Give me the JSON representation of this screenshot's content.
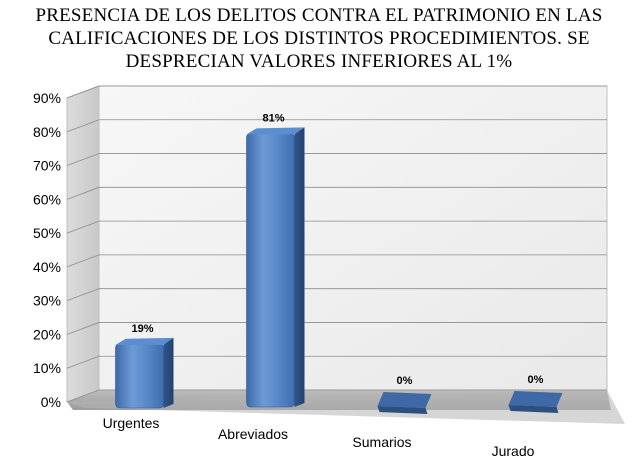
{
  "chart_data": {
    "type": "bar",
    "title": "PRESENCIA DE LOS DELITOS CONTRA EL PATRIMONIO EN LAS CALIFICACIONES DE LOS DISTINTOS PROCEDIMIENTOS. SE DESPRECIAN VALORES INFERIORES AL 1%",
    "title_lines": [
      "PRESENCIA DE LOS DELITOS CONTRA EL PATRIMONIO EN LAS",
      "CALIFICACIONES DE LOS DISTINTOS PROCEDIMIENTOS. SE",
      "DESPRECIAN VALORES INFERIORES AL 1%"
    ],
    "categories": [
      "Urgentes",
      "Abreviados",
      "Sumarios",
      "Jurado"
    ],
    "values": [
      19,
      81,
      0,
      0
    ],
    "data_labels": [
      "19%",
      "81%",
      "0%",
      "0%"
    ],
    "ylim": [
      0,
      90
    ],
    "yticks": [
      0,
      10,
      20,
      30,
      40,
      50,
      60,
      70,
      80,
      90
    ],
    "ytick_labels": [
      "0%",
      "10%",
      "20%",
      "30%",
      "40%",
      "50%",
      "60%",
      "70%",
      "80%",
      "90%"
    ],
    "xlabel": "",
    "ylabel": "",
    "grid": true,
    "style": "3d-column",
    "bar_color": "#4f81bd"
  }
}
